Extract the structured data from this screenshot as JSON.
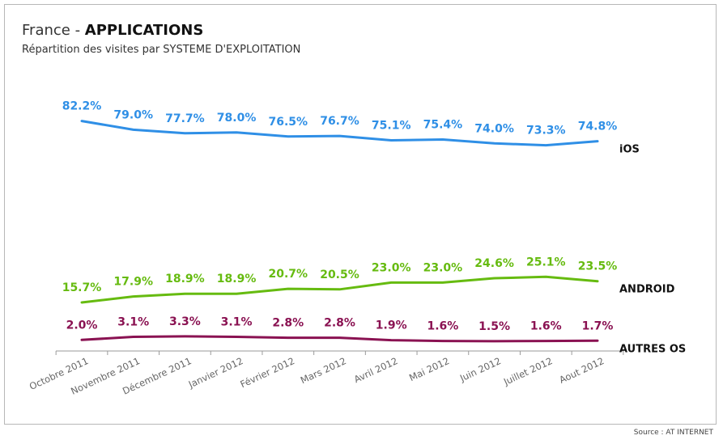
{
  "header": {
    "title_prefix": "France - ",
    "title_bold": "APPLICATIONS",
    "subtitle": "Répartition des visites par SYSTEME D'EXPLOITATION"
  },
  "source": "Source : AT INTERNET",
  "chart_data": {
    "type": "line",
    "title": "France - APPLICATIONS",
    "subtitle": "Répartition des visites par SYSTEME D'EXPLOITATION",
    "categories": [
      "Octobre 2011",
      "Novembre 2011",
      "Décembre 2011",
      "Janvier 2012",
      "Février 2012",
      "Mars 2012",
      "Avril 2012",
      "Mai 2012",
      "Juin 2012",
      "Juillet 2012",
      "Aout 2012"
    ],
    "series": [
      {
        "name": "iOS",
        "color": "#2f8fe6",
        "values": [
          82.2,
          79.0,
          77.7,
          78.0,
          76.5,
          76.7,
          75.1,
          75.4,
          74.0,
          73.3,
          74.8
        ],
        "labels": [
          "82.2%",
          "79.0%",
          "77.7%",
          "78.0%",
          "76.5%",
          "76.7%",
          "75.1%",
          "75.4%",
          "74.0%",
          "73.3%",
          "74.8%"
        ]
      },
      {
        "name": "ANDROID",
        "color": "#66bb10",
        "values": [
          15.7,
          17.9,
          18.9,
          18.9,
          20.7,
          20.5,
          23.0,
          23.0,
          24.6,
          25.1,
          23.5
        ],
        "labels": [
          "15.7%",
          "17.9%",
          "18.9%",
          "18.9%",
          "20.7%",
          "20.5%",
          "23.0%",
          "23.0%",
          "24.6%",
          "25.1%",
          "23.5%"
        ]
      },
      {
        "name": "AUTRES OS",
        "color": "#8a1252",
        "values": [
          2.0,
          3.1,
          3.3,
          3.1,
          2.8,
          2.8,
          1.9,
          1.6,
          1.5,
          1.6,
          1.7
        ],
        "labels": [
          "2.0%",
          "3.1%",
          "3.3%",
          "3.1%",
          "2.8%",
          "2.8%",
          "1.9%",
          "1.6%",
          "1.5%",
          "1.6%",
          "1.7%"
        ]
      }
    ],
    "ylim": [
      0,
      86
    ],
    "grid": false,
    "legend": "right"
  }
}
